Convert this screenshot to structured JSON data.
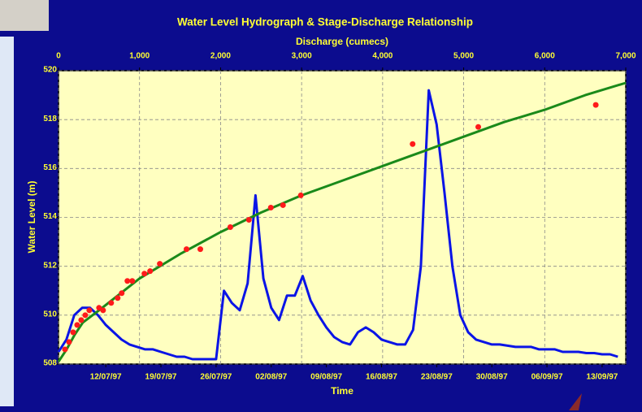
{
  "chart_data": {
    "type": "line",
    "title": "Water Level Hydrograph & Stage-Discharge Relationship",
    "x_label": "Time",
    "x2_label": "Discharge (cumecs)",
    "y_label": "Water Level (m)",
    "xlim": [
      "1997-07-06",
      "1997-09-16"
    ],
    "xticks": [
      {
        "value": "1997-07-12",
        "label": "12/07/97"
      },
      {
        "value": "1997-07-19",
        "label": "19/07/97"
      },
      {
        "value": "1997-07-26",
        "label": "26/07/97"
      },
      {
        "value": "1997-08-02",
        "label": "02/08/97"
      },
      {
        "value": "1997-08-09",
        "label": "09/08/97"
      },
      {
        "value": "1997-08-16",
        "label": "16/08/97"
      },
      {
        "value": "1997-08-23",
        "label": "23/08/97"
      },
      {
        "value": "1997-08-30",
        "label": "30/08/97"
      },
      {
        "value": "1997-09-06",
        "label": "06/09/97"
      },
      {
        "value": "1997-09-13",
        "label": "13/09/97"
      }
    ],
    "x2lim": [
      0,
      7000
    ],
    "x2ticks": [
      0,
      {
        "value": 1000,
        "label": "1,000"
      },
      {
        "value": 2000,
        "label": "2,000"
      },
      {
        "value": 3000,
        "label": "3,000"
      },
      {
        "value": 4000,
        "label": "4,000"
      },
      {
        "value": 5000,
        "label": "5,000"
      },
      {
        "value": 6000,
        "label": "6,000"
      },
      {
        "value": 7000,
        "label": "7,000"
      }
    ],
    "ylim": [
      508,
      520
    ],
    "yticks": [
      508,
      510,
      512,
      514,
      516,
      518,
      520
    ],
    "grid": true,
    "series": [
      {
        "type": "line",
        "color": "#0a14e6",
        "x": [
          "1997-07-06",
          "1997-07-07",
          "1997-07-08",
          "1997-07-09",
          "1997-07-10",
          "1997-07-11",
          "1997-07-12",
          "1997-07-13",
          "1997-07-14",
          "1997-07-15",
          "1997-07-16",
          "1997-07-17",
          "1997-07-18",
          "1997-07-19",
          "1997-07-20",
          "1997-07-21",
          "1997-07-22",
          "1997-07-23",
          "1997-07-24",
          "1997-07-25",
          "1997-07-26",
          "1997-07-27",
          "1997-07-28",
          "1997-07-29",
          "1997-07-30",
          "1997-07-31",
          "1997-08-01",
          "1997-08-02",
          "1997-08-03",
          "1997-08-04",
          "1997-08-05",
          "1997-08-06",
          "1997-08-07",
          "1997-08-08",
          "1997-08-09",
          "1997-08-10",
          "1997-08-11",
          "1997-08-12",
          "1997-08-13",
          "1997-08-14",
          "1997-08-15",
          "1997-08-16",
          "1997-08-17",
          "1997-08-18",
          "1997-08-19",
          "1997-08-20",
          "1997-08-21",
          "1997-08-22",
          "1997-08-23",
          "1997-08-24",
          "1997-08-25",
          "1997-08-26",
          "1997-08-27",
          "1997-08-28",
          "1997-08-29",
          "1997-08-30",
          "1997-08-31",
          "1997-09-01",
          "1997-09-02",
          "1997-09-03",
          "1997-09-04",
          "1997-09-05",
          "1997-09-06",
          "1997-09-07",
          "1997-09-08",
          "1997-09-09",
          "1997-09-10",
          "1997-09-11",
          "1997-09-12",
          "1997-09-13",
          "1997-09-14",
          "1997-09-15"
        ],
        "values": [
          508.5,
          509.0,
          510.0,
          510.3,
          510.3,
          510.0,
          509.6,
          509.3,
          509.0,
          508.8,
          508.7,
          508.6,
          508.6,
          508.5,
          508.4,
          508.3,
          508.3,
          508.2,
          508.2,
          508.2,
          508.2,
          511.0,
          510.5,
          510.2,
          511.3,
          514.9,
          511.5,
          510.3,
          509.8,
          510.8,
          510.8,
          511.6,
          510.6,
          510.0,
          509.5,
          509.1,
          508.9,
          508.8,
          509.3,
          509.5,
          509.3,
          509.0,
          508.9,
          508.8,
          508.8,
          509.4,
          512.0,
          519.2,
          517.8,
          515.0,
          512.0,
          510.0,
          509.3,
          509.0,
          508.9,
          508.8,
          508.8,
          508.75,
          508.7,
          508.7,
          508.7,
          508.6,
          508.6,
          508.6,
          508.5,
          508.5,
          508.5,
          508.45,
          508.45,
          508.4,
          508.4,
          508.3
        ]
      },
      {
        "type": "line",
        "axis": "x2",
        "color": "#1a8a1a",
        "x": [
          0,
          100,
          200,
          300,
          500,
          1000,
          1500,
          2000,
          2500,
          3000,
          3500,
          4000,
          4500,
          5000,
          5500,
          6000,
          6500,
          7000
        ],
        "values": [
          508.1,
          508.6,
          509.2,
          509.7,
          510.2,
          511.5,
          512.5,
          513.4,
          514.2,
          514.9,
          515.5,
          516.1,
          516.7,
          517.3,
          517.9,
          518.4,
          519.0,
          519.5
        ]
      },
      {
        "type": "scatter",
        "axis": "x2",
        "color": "#ff1a1a",
        "x": [
          80,
          130,
          180,
          230,
          280,
          330,
          380,
          500,
          550,
          650,
          730,
          780,
          850,
          910,
          1060,
          1130,
          1250,
          1580,
          1750,
          2120,
          2350,
          2620,
          2770,
          2990,
          4370,
          5180,
          6630
        ],
        "values": [
          508.6,
          508.9,
          509.3,
          509.6,
          509.8,
          510.0,
          510.2,
          510.3,
          510.2,
          510.5,
          510.7,
          510.9,
          511.4,
          511.4,
          511.7,
          511.8,
          512.1,
          512.7,
          512.7,
          513.6,
          513.9,
          514.4,
          514.5,
          514.9,
          517.0,
          517.7,
          518.6
        ]
      }
    ]
  }
}
